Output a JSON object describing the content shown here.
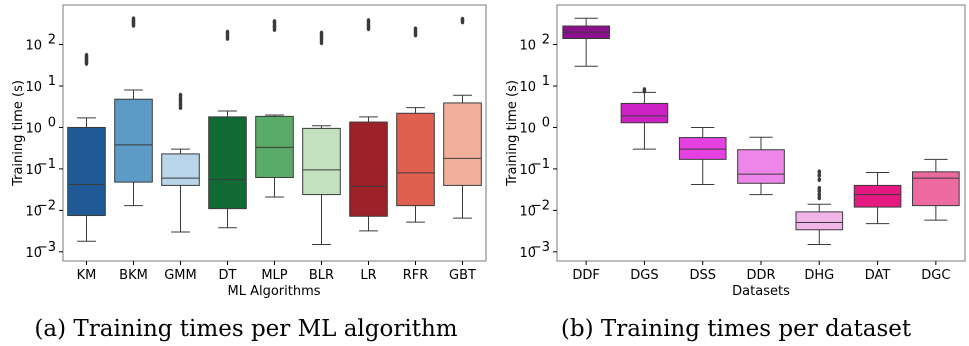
{
  "chart_data": [
    {
      "type": "box",
      "caption": "(a) Training times per ML algorithm",
      "xlabel": "ML Algorithms",
      "ylabel": "Training time (s)",
      "yscale": "log",
      "ylim": [
        0.0006,
        900
      ],
      "yticks": [
        {
          "value": 0.001,
          "base": "10",
          "exp": "−3"
        },
        {
          "value": 0.01,
          "base": "10",
          "exp": "−2"
        },
        {
          "value": 0.1,
          "base": "10",
          "exp": "−1"
        },
        {
          "value": 1,
          "base": "10",
          "exp": "0"
        },
        {
          "value": 10,
          "base": "10",
          "exp": "1"
        },
        {
          "value": 100,
          "base": "10",
          "exp": "2"
        }
      ],
      "grid": false,
      "categories": [
        "KM",
        "BKM",
        "GMM",
        "DT",
        "MLP",
        "BLR",
        "LR",
        "RFR",
        "GBT"
      ],
      "boxes": [
        {
          "category": "KM",
          "color": "#1f5a96",
          "whisker_low": 0.0018,
          "q1": 0.0075,
          "median": 0.042,
          "q3": 1.0,
          "whisker_high": 1.7,
          "outliers": [
            35,
            38,
            42,
            46,
            50,
            55
          ]
        },
        {
          "category": "BKM",
          "color": "#5d9bc7",
          "whisker_low": 0.013,
          "q1": 0.048,
          "median": 0.38,
          "q3": 4.8,
          "whisker_high": 8.0,
          "outliers": [
            290,
            320,
            350,
            380,
            420
          ]
        },
        {
          "category": "GMM",
          "color": "#b8d5ea",
          "whisker_low": 0.003,
          "q1": 0.04,
          "median": 0.06,
          "q3": 0.23,
          "whisker_high": 0.3,
          "outliers": [
            3.0,
            3.5,
            4.0,
            4.6,
            5.2,
            6.0
          ]
        },
        {
          "category": "DT",
          "color": "#116a33",
          "whisker_low": 0.0038,
          "q1": 0.011,
          "median": 0.055,
          "q3": 1.8,
          "whisker_high": 2.5,
          "outliers": [
            140,
            160,
            180,
            200
          ]
        },
        {
          "category": "MLP",
          "color": "#5aaa68",
          "whisker_low": 0.021,
          "q1": 0.062,
          "median": 0.33,
          "q3": 1.85,
          "whisker_high": 2.0,
          "outliers": [
            230,
            260,
            290,
            330,
            360
          ]
        },
        {
          "category": "BLR",
          "color": "#c3e1be",
          "whisker_low": 0.0015,
          "q1": 0.024,
          "median": 0.095,
          "q3": 0.95,
          "whisker_high": 1.1,
          "outliers": [
            110,
            130,
            150,
            170,
            190
          ]
        },
        {
          "category": "LR",
          "color": "#9c2128",
          "whisker_low": 0.0032,
          "q1": 0.0072,
          "median": 0.038,
          "q3": 1.35,
          "whisker_high": 1.8,
          "outliers": [
            240,
            270,
            300,
            340,
            380
          ]
        },
        {
          "category": "RFR",
          "color": "#e06050",
          "whisker_low": 0.0052,
          "q1": 0.013,
          "median": 0.08,
          "q3": 2.2,
          "whisker_high": 3.0,
          "outliers": [
            170,
            190,
            210,
            240
          ]
        },
        {
          "category": "GBT",
          "color": "#f2b09c",
          "whisker_low": 0.0065,
          "q1": 0.04,
          "median": 0.18,
          "q3": 3.9,
          "whisker_high": 6.0,
          "outliers": [
            350,
            380,
            410
          ]
        }
      ]
    },
    {
      "type": "box",
      "caption": "(b) Training times per dataset",
      "xlabel": "Datasets",
      "ylabel": "Training time (s)",
      "yscale": "log",
      "ylim": [
        0.0006,
        900
      ],
      "yticks": [
        {
          "value": 0.001,
          "base": "10",
          "exp": "−3"
        },
        {
          "value": 0.01,
          "base": "10",
          "exp": "−2"
        },
        {
          "value": 0.1,
          "base": "10",
          "exp": "−1"
        },
        {
          "value": 1,
          "base": "10",
          "exp": "0"
        },
        {
          "value": 10,
          "base": "10",
          "exp": "1"
        },
        {
          "value": 100,
          "base": "10",
          "exp": "2"
        }
      ],
      "grid": false,
      "categories": [
        "DDF",
        "DGS",
        "DSS",
        "DDR",
        "DHG",
        "DAT",
        "DGC"
      ],
      "boxes": [
        {
          "category": "DDF",
          "color": "#8c108e",
          "whisker_low": 30,
          "q1": 140,
          "median": 200,
          "q3": 280,
          "whisker_high": 430,
          "outliers": []
        },
        {
          "category": "DGS",
          "color": "#cc22c4",
          "whisker_low": 0.3,
          "q1": 1.3,
          "median": 1.9,
          "q3": 3.8,
          "whisker_high": 7.0,
          "outliers": [
            7.5,
            8.2
          ]
        },
        {
          "category": "DSS",
          "color": "#e540e0",
          "whisker_low": 0.042,
          "q1": 0.17,
          "median": 0.3,
          "q3": 0.57,
          "whisker_high": 1.0,
          "outliers": []
        },
        {
          "category": "DDR",
          "color": "#ec86e8",
          "whisker_low": 0.024,
          "q1": 0.045,
          "median": 0.075,
          "q3": 0.29,
          "whisker_high": 0.58,
          "outliers": []
        },
        {
          "category": "DHG",
          "color": "#f1b5e8",
          "whisker_low": 0.0015,
          "q1": 0.0034,
          "median": 0.0051,
          "q3": 0.0092,
          "whisker_high": 0.014,
          "outliers": [
            0.02,
            0.024,
            0.029,
            0.034,
            0.055,
            0.07,
            0.085
          ]
        },
        {
          "category": "DAT",
          "color": "#e41a82",
          "whisker_low": 0.0048,
          "q1": 0.012,
          "median": 0.024,
          "q3": 0.04,
          "whisker_high": 0.082,
          "outliers": []
        },
        {
          "category": "DGC",
          "color": "#ec6aa0",
          "whisker_low": 0.0058,
          "q1": 0.013,
          "median": 0.06,
          "q3": 0.085,
          "whisker_high": 0.17,
          "outliers": []
        }
      ]
    }
  ]
}
